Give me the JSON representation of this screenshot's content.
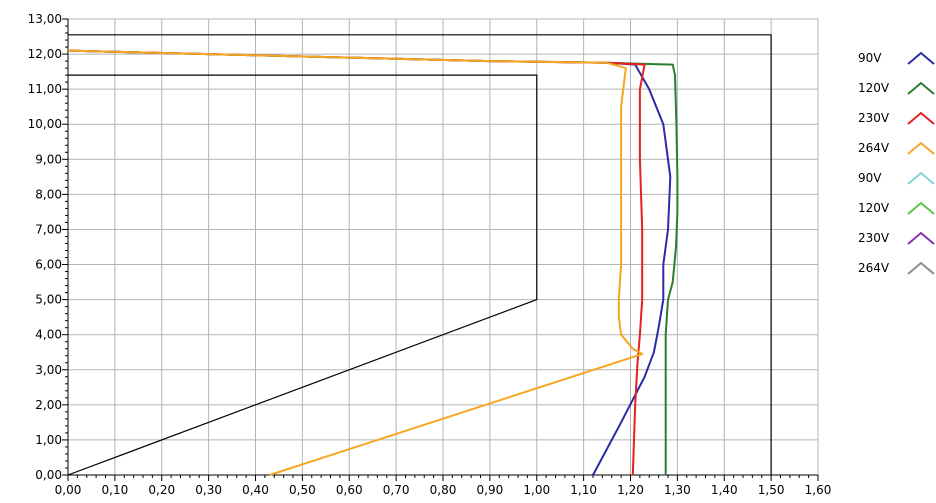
{
  "chart_data": {
    "type": "line",
    "title": "",
    "xlabel": "",
    "ylabel": "",
    "xlim": [
      0,
      1.6
    ],
    "ylim": [
      0,
      13
    ],
    "x_ticks": [
      "0,00",
      "0,10",
      "0,20",
      "0,30",
      "0,40",
      "0,50",
      "0,60",
      "0,70",
      "0,80",
      "0,90",
      "1,00",
      "1,10",
      "1,20",
      "1,30",
      "1,40",
      "1,50",
      "1,60"
    ],
    "y_ticks": [
      "0,00",
      "1,00",
      "2,00",
      "3,00",
      "4,00",
      "5,00",
      "6,00",
      "7,00",
      "8,00",
      "9,00",
      "10,00",
      "11,00",
      "12,00",
      "13,00"
    ],
    "grid": true,
    "legend_position": "right",
    "limit_lines": [
      {
        "color": "#000000",
        "points": [
          [
            0,
            0
          ],
          [
            1.0,
            5.0
          ],
          [
            1.0,
            11.4
          ],
          [
            0,
            11.4
          ]
        ]
      },
      {
        "color": "#000000",
        "points": [
          [
            0,
            12.55
          ],
          [
            1.5,
            12.55
          ],
          [
            1.5,
            0
          ]
        ]
      }
    ],
    "series": [
      {
        "name": "90V",
        "color": "#2b2ba8",
        "points": [
          [
            0,
            12.1
          ],
          [
            0.3,
            12.0
          ],
          [
            0.6,
            11.9
          ],
          [
            0.9,
            11.8
          ],
          [
            1.15,
            11.75
          ],
          [
            1.21,
            11.7
          ],
          [
            1.24,
            11.0
          ],
          [
            1.27,
            10.0
          ],
          [
            1.285,
            8.5
          ],
          [
            1.28,
            7.0
          ],
          [
            1.27,
            6.0
          ],
          [
            1.27,
            5.0
          ],
          [
            1.26,
            4.2
          ],
          [
            1.25,
            3.5
          ],
          [
            1.23,
            2.8
          ],
          [
            1.18,
            1.5
          ],
          [
            1.12,
            0
          ]
        ]
      },
      {
        "name": "120V",
        "color": "#2e7d2e",
        "points": [
          [
            0,
            12.1
          ],
          [
            0.3,
            12.0
          ],
          [
            0.6,
            11.9
          ],
          [
            0.9,
            11.8
          ],
          [
            1.15,
            11.75
          ],
          [
            1.29,
            11.7
          ],
          [
            1.295,
            11.4
          ],
          [
            1.298,
            10.0
          ],
          [
            1.3,
            8.5
          ],
          [
            1.3,
            7.5
          ],
          [
            1.297,
            6.5
          ],
          [
            1.29,
            5.5
          ],
          [
            1.28,
            5.0
          ],
          [
            1.275,
            4.0
          ],
          [
            1.275,
            2.0
          ],
          [
            1.275,
            0
          ]
        ]
      },
      {
        "name": "230V",
        "color": "#e52020",
        "points": [
          [
            0,
            12.1
          ],
          [
            0.3,
            12.0
          ],
          [
            0.6,
            11.9
          ],
          [
            0.9,
            11.8
          ],
          [
            1.15,
            11.75
          ],
          [
            1.23,
            11.7
          ],
          [
            1.22,
            11.0
          ],
          [
            1.22,
            9.0
          ],
          [
            1.225,
            7.0
          ],
          [
            1.225,
            5.0
          ],
          [
            1.22,
            4.0
          ],
          [
            1.215,
            3.2
          ],
          [
            1.21,
            2.0
          ],
          [
            1.205,
            0
          ]
        ]
      },
      {
        "name": "264V",
        "color": "#f5a623",
        "points": [
          [
            0,
            12.1
          ],
          [
            0.3,
            12.0
          ],
          [
            0.6,
            11.9
          ],
          [
            0.9,
            11.8
          ],
          [
            1.15,
            11.75
          ],
          [
            1.19,
            11.6
          ],
          [
            1.18,
            10.5
          ],
          [
            1.18,
            9.0
          ],
          [
            1.18,
            7.5
          ],
          [
            1.18,
            6.0
          ],
          [
            1.175,
            5.0
          ],
          [
            1.175,
            4.5
          ],
          [
            1.18,
            4.0
          ],
          [
            1.205,
            3.6
          ],
          [
            1.225,
            3.45
          ],
          [
            0.43,
            0
          ]
        ]
      },
      {
        "name": "90V",
        "color": "#7fd6d6",
        "points": []
      },
      {
        "name": "120V",
        "color": "#5cc24a",
        "points": []
      },
      {
        "name": "230V",
        "color": "#8b2fb3",
        "points": []
      },
      {
        "name": "264V",
        "color": "#8a8a8a",
        "points": []
      }
    ]
  }
}
